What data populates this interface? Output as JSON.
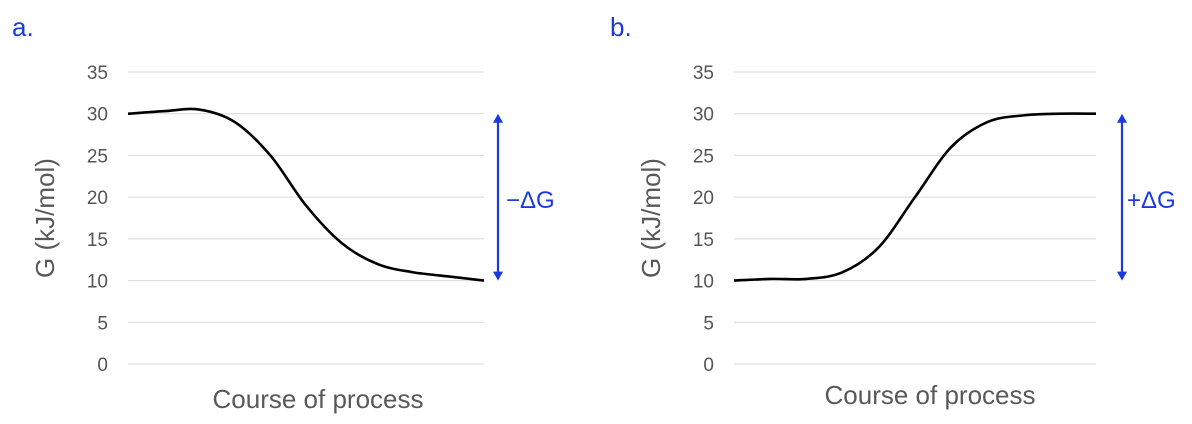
{
  "chart_data": [
    {
      "type": "line",
      "panel_label": "a.",
      "xlabel": "Course of process",
      "ylabel": "G (kJ/mol)",
      "ylim": [
        0,
        35
      ],
      "yticks": [
        0,
        5,
        10,
        15,
        20,
        25,
        30,
        35
      ],
      "grid": true,
      "x": [
        0,
        0.1,
        0.2,
        0.3,
        0.4,
        0.5,
        0.6,
        0.7,
        0.8,
        0.9,
        1.0
      ],
      "series": [
        {
          "values": [
            30,
            30.3,
            30.5,
            29.0,
            25.0,
            19.0,
            14.5,
            12.0,
            11.0,
            10.5,
            10.0
          ]
        }
      ],
      "annotation": {
        "text": "−ΔG",
        "from": 30,
        "to": 10,
        "color": "#1a3ae0"
      }
    },
    {
      "type": "line",
      "panel_label": "b.",
      "xlabel": "Course of process",
      "ylabel": "G (kJ/mol)",
      "ylim": [
        0,
        35
      ],
      "yticks": [
        0,
        5,
        10,
        15,
        20,
        25,
        30,
        35
      ],
      "grid": true,
      "x": [
        0,
        0.1,
        0.2,
        0.3,
        0.4,
        0.5,
        0.6,
        0.7,
        0.8,
        0.9,
        1.0
      ],
      "series": [
        {
          "values": [
            10,
            10.2,
            10.2,
            11.0,
            14.0,
            20.0,
            26.0,
            29.0,
            29.8,
            30.0,
            30.0
          ]
        }
      ],
      "annotation": {
        "text": "+ΔG",
        "from": 10,
        "to": 30,
        "color": "#1a3ae0"
      }
    }
  ]
}
